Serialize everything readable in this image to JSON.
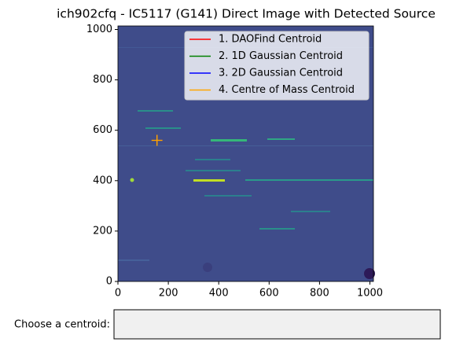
{
  "chart_data": {
    "type": "image",
    "title": "ich902cfq - IC5117 (G141) Direct Image with Detected Source",
    "xlim": [
      0,
      1014
    ],
    "ylim": [
      0,
      1014
    ],
    "xticks": [
      0,
      200,
      400,
      600,
      800,
      1000
    ],
    "yticks": [
      0,
      200,
      400,
      600,
      800,
      1000
    ],
    "legend": "upper right",
    "series": [
      {
        "name": "1. DAOFind Centroid",
        "color": "red",
        "x": 155,
        "y": 560
      },
      {
        "name": "2. 1D Gaussian Centroid",
        "color": "green",
        "x": 155,
        "y": 560
      },
      {
        "name": "3. 2D Gaussian Centroid",
        "color": "blue",
        "x": 155,
        "y": 560
      },
      {
        "name": "4. Centre of Mass Centroid",
        "color": "orange",
        "x": 155,
        "y": 560
      }
    ]
  },
  "widget": {
    "label": "Choose a centroid:"
  }
}
